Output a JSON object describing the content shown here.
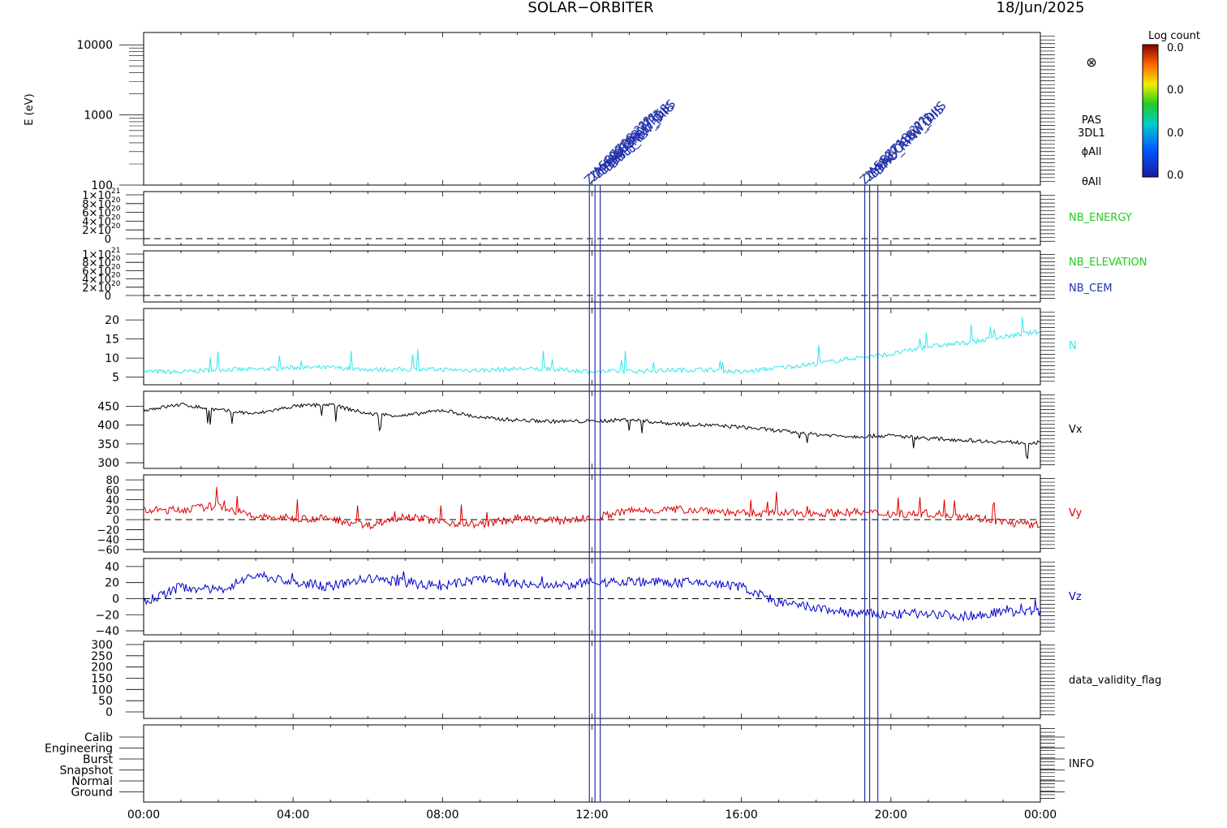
{
  "header": {
    "title": "SOLAR−ORBITER",
    "date": "18/Jun/2025"
  },
  "colorbar": {
    "title": "Log count",
    "labels": [
      "0.0",
      "0.0",
      "0.0",
      "0.0"
    ]
  },
  "colors": {
    "n": "#33e6ee",
    "vx": "#000000",
    "vy": "#dd0000",
    "vz": "#0000cc",
    "marker": "#2233aa",
    "green_label": "#22cc22",
    "blue_label": "#2233aa"
  },
  "x_axis": {
    "ticks": [
      "00:00",
      "04:00",
      "08:00",
      "12:00",
      "16:00",
      "20:00",
      "00:00"
    ],
    "range_hours": [
      0,
      24
    ]
  },
  "markers": {
    "groups": [
      {
        "lines_hours": [
          11.93,
          12.08,
          12.22
        ],
        "labels": [
          "ZIA587708 ???",
          "ZIA588708 ???",
          "ZIA588200 ???",
          "DBHJ_8H_FIRES",
          "DBHJ_RBW_DIIS",
          "DBHJ_BW_DIIS"
        ]
      },
      {
        "lines_hours": [
          19.3,
          19.43,
          19.65
        ],
        "labels": [
          "ZIA587718 ???",
          "ZIA587718 ???",
          "DENSORBW_DIIS",
          "DHO_RPW_DIIS"
        ]
      }
    ]
  },
  "panels": {
    "energy": {
      "ylabel": "E (eV)",
      "ticks": [
        "100",
        "1000",
        "10000"
      ],
      "right_labels": [
        "PAS",
        "3DL1",
        "ϕAll",
        "θAll"
      ],
      "symbol": "⊗"
    },
    "nb_energy": {
      "label": "NB_ENERGY",
      "ticks": [
        "0",
        "2×10",
        "4×10",
        "6×10",
        "8×10",
        "1×10"
      ],
      "exps": [
        "",
        "20",
        "20",
        "20",
        "20",
        "21"
      ]
    },
    "nb_elevation": {
      "labels": [
        "NB_ELEVATION",
        "NB_CEM"
      ],
      "ticks": [
        "0",
        "2×10",
        "4×10",
        "6×10",
        "8×10",
        "1×10"
      ],
      "exps": [
        "",
        "20",
        "20",
        "20",
        "20",
        "21"
      ]
    },
    "n": {
      "label": "N",
      "ticks": [
        "5",
        "10",
        "15",
        "20"
      ]
    },
    "vx": {
      "label": "Vx",
      "ticks": [
        "300",
        "350",
        "400",
        "450"
      ]
    },
    "vy": {
      "label": "Vy",
      "ticks": [
        "−60",
        "−40",
        "−20",
        "0",
        "20",
        "40",
        "60",
        "80"
      ]
    },
    "vz": {
      "label": "Vz",
      "ticks": [
        "−40",
        "−20",
        "0",
        "20",
        "40"
      ]
    },
    "validity": {
      "label": "data_validity_flag",
      "ticks": [
        "0",
        "50",
        "100",
        "150",
        "200",
        "250",
        "300"
      ]
    },
    "info": {
      "label": "INFO",
      "modes": [
        "Calib",
        "Engineering",
        "Burst",
        "Snapshot",
        "Normal",
        "Ground"
      ]
    }
  },
  "chart_data": [
    {
      "type": "line",
      "panel": "N",
      "x_unit": "hour",
      "ylim": [
        3,
        23
      ],
      "series": [
        {
          "name": "N",
          "x": [
            0,
            1,
            2,
            3,
            4,
            5,
            6,
            7,
            8,
            9,
            10,
            11,
            12,
            13,
            14,
            15,
            16,
            17,
            18,
            19,
            20,
            21,
            22,
            23,
            24
          ],
          "values": [
            6.5,
            6.3,
            7,
            7,
            7.5,
            7.5,
            7,
            7,
            7,
            6.8,
            7.2,
            7,
            6.5,
            6.5,
            6.8,
            7,
            6.3,
            7.5,
            8.5,
            10,
            11,
            13,
            14,
            15.5,
            17
          ]
        }
      ]
    },
    {
      "type": "line",
      "panel": "Vx",
      "x_unit": "hour",
      "ylim": [
        285,
        490
      ],
      "series": [
        {
          "name": "Vx",
          "x": [
            0,
            1,
            2,
            3,
            4,
            5,
            6,
            7,
            8,
            9,
            10,
            11,
            12,
            13,
            14,
            15,
            16,
            17,
            18,
            19,
            20,
            21,
            22,
            23,
            24
          ],
          "values": [
            440,
            455,
            440,
            430,
            450,
            455,
            430,
            425,
            440,
            420,
            413,
            410,
            410,
            415,
            405,
            400,
            395,
            385,
            375,
            370,
            372,
            365,
            360,
            355,
            353
          ]
        }
      ]
    },
    {
      "type": "line",
      "panel": "Vy",
      "x_unit": "hour",
      "ylim": [
        -65,
        90
      ],
      "series": [
        {
          "name": "Vy",
          "x": [
            0,
            1,
            2,
            3,
            4,
            5,
            6,
            7,
            8,
            9,
            10,
            11,
            12,
            13,
            14,
            15,
            16,
            17,
            18,
            19,
            20,
            21,
            22,
            23,
            24
          ],
          "values": [
            18,
            20,
            28,
            5,
            3,
            2,
            -12,
            8,
            -5,
            -10,
            2,
            -2,
            3,
            18,
            20,
            20,
            12,
            13,
            13,
            15,
            12,
            12,
            8,
            -5,
            -12
          ]
        }
      ]
    },
    {
      "type": "line",
      "panel": "Vz",
      "x_unit": "hour",
      "ylim": [
        -45,
        50
      ],
      "series": [
        {
          "name": "Vz",
          "x": [
            0,
            1,
            2,
            3,
            4,
            5,
            6,
            7,
            8,
            9,
            10,
            11,
            12,
            13,
            14,
            15,
            16,
            17,
            18,
            19,
            20,
            21,
            22,
            23,
            24
          ],
          "values": [
            -5,
            15,
            10,
            30,
            20,
            15,
            25,
            20,
            15,
            25,
            18,
            15,
            20,
            22,
            20,
            20,
            15,
            -5,
            -12,
            -18,
            -20,
            -18,
            -22,
            -16,
            -16
          ]
        }
      ]
    }
  ]
}
